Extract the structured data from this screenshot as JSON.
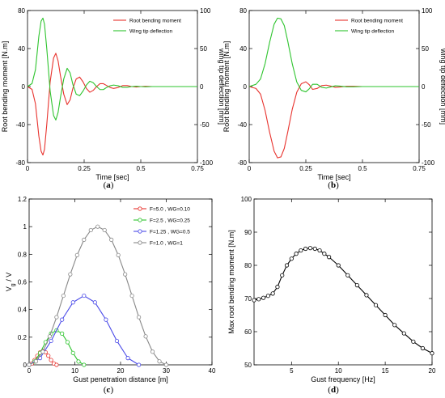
{
  "chart_data": [
    {
      "id": "a",
      "type": "line",
      "caption": "a",
      "xlabel": "Time [sec]",
      "ylabel": "Root bending moment [N.m]",
      "y2label": "wing tip deflection [mm]",
      "xlim": [
        0,
        0.75
      ],
      "ylim": [
        -80,
        80
      ],
      "y2lim": [
        -100,
        100
      ],
      "xticks": [
        0,
        0.25,
        0.5,
        0.75
      ],
      "yticks": [
        -80,
        -40,
        0,
        40,
        80
      ],
      "y2ticks": [
        -100,
        -50,
        0,
        50,
        100
      ],
      "legend": "top-right",
      "series": [
        {
          "name": "Root bending moment",
          "color": "#e8332e",
          "axis": "left",
          "x": [
            0,
            0.02,
            0.035,
            0.05,
            0.06,
            0.068,
            0.075,
            0.085,
            0.1,
            0.115,
            0.125,
            0.135,
            0.145,
            0.16,
            0.175,
            0.188,
            0.2,
            0.215,
            0.23,
            0.245,
            0.26,
            0.275,
            0.29,
            0.305,
            0.32,
            0.335,
            0.35,
            0.365,
            0.38,
            0.4,
            0.42,
            0.44,
            0.46,
            0.48,
            0.5,
            0.52,
            0.55,
            0.6,
            0.65,
            0.7,
            0.75
          ],
          "y": [
            0,
            -3,
            -18,
            -52,
            -68,
            -72,
            -66,
            -40,
            5,
            30,
            35,
            27,
            12,
            -8,
            -19,
            -14,
            -2,
            8,
            10,
            5,
            -2,
            -6,
            -4,
            0,
            3,
            3,
            1,
            -1,
            -2,
            -1,
            1,
            1,
            0,
            -0.5,
            0,
            0.3,
            0,
            0,
            0,
            0,
            0
          ]
        },
        {
          "name": "Wing tip deflection",
          "color": "#2ec42e",
          "axis": "right",
          "x": [
            0,
            0.02,
            0.035,
            0.05,
            0.06,
            0.068,
            0.075,
            0.085,
            0.1,
            0.115,
            0.125,
            0.135,
            0.145,
            0.16,
            0.175,
            0.188,
            0.2,
            0.215,
            0.23,
            0.245,
            0.26,
            0.275,
            0.29,
            0.305,
            0.32,
            0.335,
            0.35,
            0.365,
            0.38,
            0.4,
            0.42,
            0.44,
            0.46,
            0.48,
            0.5,
            0.52,
            0.55,
            0.6,
            0.65,
            0.7,
            0.75
          ],
          "y": [
            0,
            4,
            22,
            66,
            86,
            90,
            82,
            50,
            -6,
            -38,
            -44,
            -34,
            -15,
            10,
            24,
            18,
            3,
            -10,
            -12,
            -6,
            2,
            7,
            5,
            0,
            -4,
            -4,
            -1,
            1,
            2,
            1,
            -1,
            -1,
            0,
            0.5,
            0,
            -0.3,
            0,
            0,
            0,
            0,
            0
          ]
        }
      ]
    },
    {
      "id": "b",
      "type": "line",
      "caption": "b",
      "xlabel": "Time [sec]",
      "ylabel": "Root bending moment [N.m]",
      "y2label": "wing tip deflection [mm]",
      "xlim": [
        0,
        0.75
      ],
      "ylim": [
        -80,
        80
      ],
      "y2lim": [
        -100,
        100
      ],
      "xticks": [
        0,
        0.25,
        0.5,
        0.75
      ],
      "yticks": [
        -80,
        -40,
        0,
        40,
        80
      ],
      "y2ticks": [
        -100,
        -50,
        0,
        50,
        100
      ],
      "legend": "top-right",
      "series": [
        {
          "name": "Root bending moment",
          "color": "#e8332e",
          "axis": "left",
          "x": [
            0,
            0.03,
            0.05,
            0.07,
            0.09,
            0.11,
            0.125,
            0.14,
            0.155,
            0.17,
            0.19,
            0.21,
            0.23,
            0.25,
            0.265,
            0.28,
            0.3,
            0.32,
            0.34,
            0.36,
            0.38,
            0.4,
            0.43,
            0.46,
            0.5,
            0.55,
            0.6,
            0.65,
            0.7,
            0.75
          ],
          "y": [
            0,
            -2,
            -8,
            -25,
            -48,
            -68,
            -75,
            -74,
            -65,
            -48,
            -24,
            -6,
            3,
            5,
            2,
            -3,
            -2,
            1,
            1.5,
            0.5,
            -0.8,
            -0.5,
            0.3,
            0.3,
            0,
            0,
            0,
            0,
            0,
            0
          ]
        },
        {
          "name": "Wing tip deflection",
          "color": "#2ec42e",
          "axis": "right",
          "x": [
            0,
            0.03,
            0.05,
            0.07,
            0.09,
            0.11,
            0.125,
            0.14,
            0.155,
            0.17,
            0.19,
            0.21,
            0.23,
            0.25,
            0.265,
            0.28,
            0.3,
            0.32,
            0.34,
            0.36,
            0.38,
            0.4,
            0.43,
            0.46,
            0.5,
            0.55,
            0.6,
            0.65,
            0.7,
            0.75
          ],
          "y": [
            0,
            3,
            10,
            30,
            58,
            82,
            90,
            89,
            80,
            60,
            30,
            6,
            -5,
            -7,
            -3,
            3,
            3,
            -1,
            -2,
            -0.5,
            1,
            0.6,
            -0.3,
            -0.3,
            0,
            0,
            0,
            0,
            0,
            0
          ]
        }
      ]
    },
    {
      "id": "c",
      "type": "line",
      "caption": "c",
      "xlabel": "Gust penetration distance [m]",
      "ylabel": "Vg / V",
      "xlim": [
        0,
        40
      ],
      "ylim": [
        0,
        1.2
      ],
      "xticks": [
        0,
        10,
        20,
        30,
        40
      ],
      "yticks": [
        0,
        0.2,
        0.4,
        0.6,
        0.8,
        1,
        1.2
      ],
      "legend": "top-right",
      "series": [
        {
          "name": "F=5.0 , WG=0.10",
          "color": "#e8332e",
          "x": [
            0,
            0.6,
            1.2,
            1.8,
            2.4,
            3.0,
            3.6,
            4.2,
            4.8,
            5.4,
            6.0
          ],
          "y": [
            0,
            0.0098,
            0.0345,
            0.0655,
            0.0905,
            0.1,
            0.0905,
            0.0655,
            0.0345,
            0.0098,
            0
          ]
        },
        {
          "name": "F=2.5 , WG=0.25",
          "color": "#2ec42e",
          "x": [
            0,
            1.2,
            2.4,
            3.6,
            4.8,
            6.0,
            7.2,
            8.4,
            9.6,
            10.8,
            12.0
          ],
          "y": [
            0,
            0.024,
            0.086,
            0.164,
            0.226,
            0.25,
            0.226,
            0.164,
            0.086,
            0.024,
            0
          ]
        },
        {
          "name": "F=1.25 , WG=0.5",
          "color": "#4a4ae8",
          "x": [
            0,
            2.4,
            4.8,
            7.2,
            9.6,
            12.0,
            14.4,
            16.8,
            19.2,
            21.6,
            24.0
          ],
          "y": [
            0,
            0.049,
            0.173,
            0.327,
            0.452,
            0.5,
            0.452,
            0.327,
            0.173,
            0.049,
            0
          ]
        },
        {
          "name": "F=1.0 , WG=1",
          "color": "#888888",
          "x": [
            0,
            1.5,
            3.0,
            4.5,
            6.0,
            7.5,
            9.0,
            10.5,
            12.0,
            13.5,
            15.0,
            16.5,
            18.0,
            19.5,
            21.0,
            22.5,
            24.0,
            25.5,
            27.0,
            28.5,
            30.0
          ],
          "y": [
            0,
            0.025,
            0.095,
            0.206,
            0.345,
            0.5,
            0.655,
            0.794,
            0.905,
            0.975,
            1.0,
            0.975,
            0.905,
            0.794,
            0.655,
            0.5,
            0.345,
            0.206,
            0.095,
            0.025,
            0
          ]
        }
      ]
    },
    {
      "id": "d",
      "type": "line",
      "caption": "d",
      "xlabel": "Gust frequency [Hz]",
      "ylabel": "Max root bending moment [N.m]",
      "xlim": [
        1,
        20
      ],
      "ylim": [
        50,
        100
      ],
      "xticks": [
        5,
        10,
        15,
        20
      ],
      "yticks": [
        50,
        60,
        70,
        80,
        90,
        100
      ],
      "series": [
        {
          "name": "",
          "color": "#000000",
          "x": [
            1,
            1.5,
            2,
            2.5,
            3,
            3.5,
            4,
            4.5,
            5,
            5.5,
            6,
            6.5,
            7,
            7.5,
            8,
            8.5,
            9,
            10,
            11,
            12,
            13,
            14,
            15,
            16,
            17,
            18,
            19,
            20
          ],
          "y": [
            69.5,
            69.8,
            70.2,
            70.8,
            71.5,
            73.5,
            77,
            80,
            82,
            83.5,
            84.5,
            85,
            85.2,
            85,
            84.5,
            83.5,
            82.5,
            80,
            77,
            74,
            71,
            68,
            65,
            62,
            59.5,
            57,
            55,
            53.5
          ]
        }
      ]
    }
  ]
}
